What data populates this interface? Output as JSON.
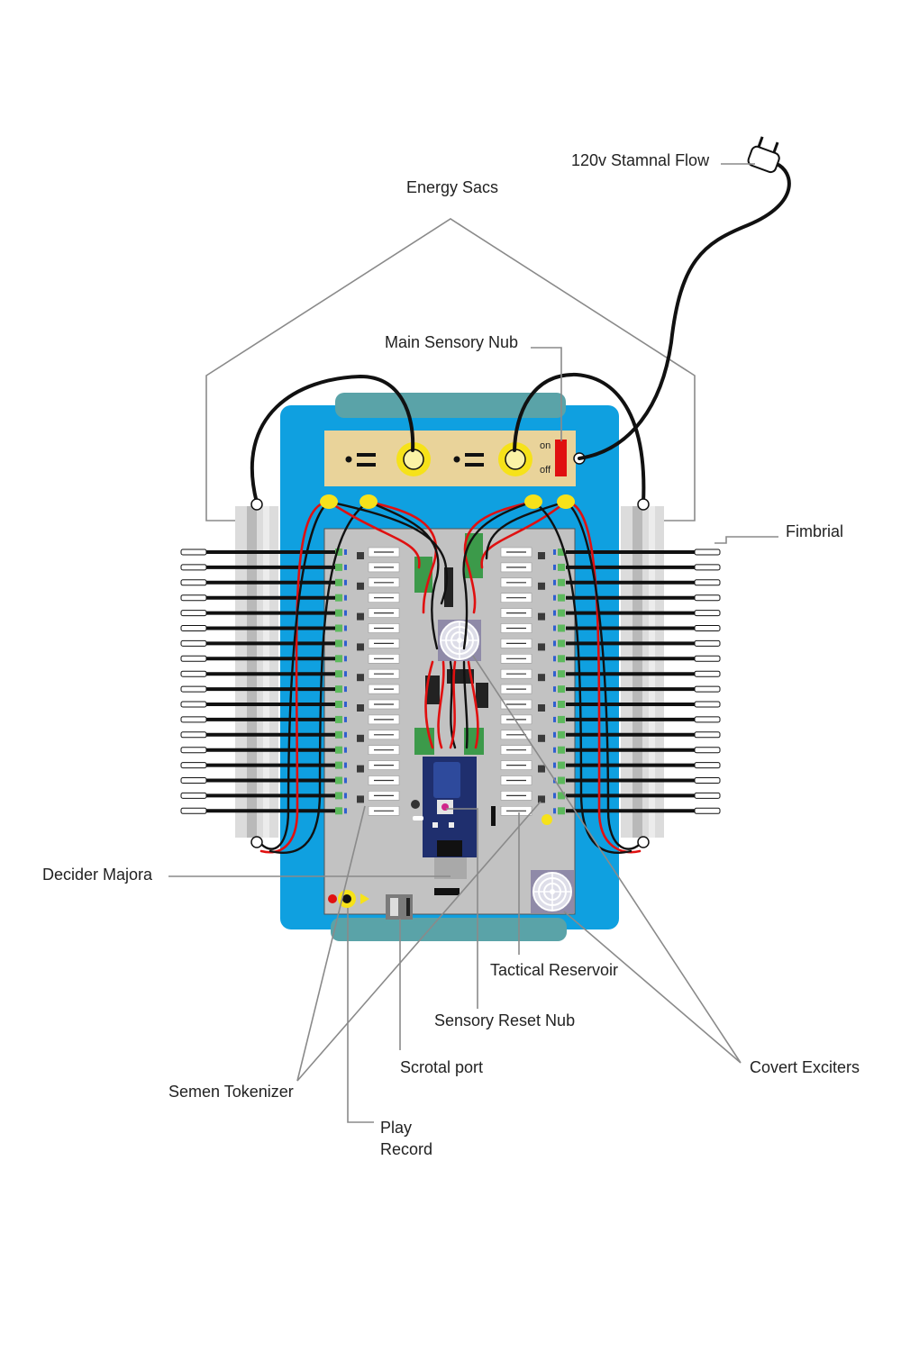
{
  "labels": {
    "stamnal_flow": "120v Stamnal Flow",
    "energy_sacs": "Energy Sacs",
    "main_sensory_nub": "Main Sensory Nub",
    "fimbrial": "Fimbrial",
    "decider_majora": "Decider Majora",
    "tactical_reservoir": "Tactical Reservoir",
    "sensory_reset_nub": "Sensory Reset Nub",
    "scrotal_port": "Scrotal port",
    "covert_exciters": "Covert Exciters",
    "semen_tokenizer": "Semen Tokenizer",
    "play": "Play",
    "record": "Record"
  },
  "switch": {
    "on": "on",
    "off": "off"
  },
  "colors": {
    "enclosure": "#0fa0e0",
    "rails": "#5aa3a8",
    "panel": "#e9d39a",
    "board": "#c2c2c2",
    "wire_black": "#111111",
    "wire_red": "#e01010",
    "led_yellow": "#f6e21a",
    "switch_red": "#e01010",
    "heatsink": "#d4d4d4",
    "mcu": "#1f2f6e",
    "leader_line": "#8a8a8a"
  },
  "icons": [
    "plug-icon",
    "fan-icon",
    "toggle-switch-icon",
    "socket-icon",
    "audio-jack-icon"
  ]
}
